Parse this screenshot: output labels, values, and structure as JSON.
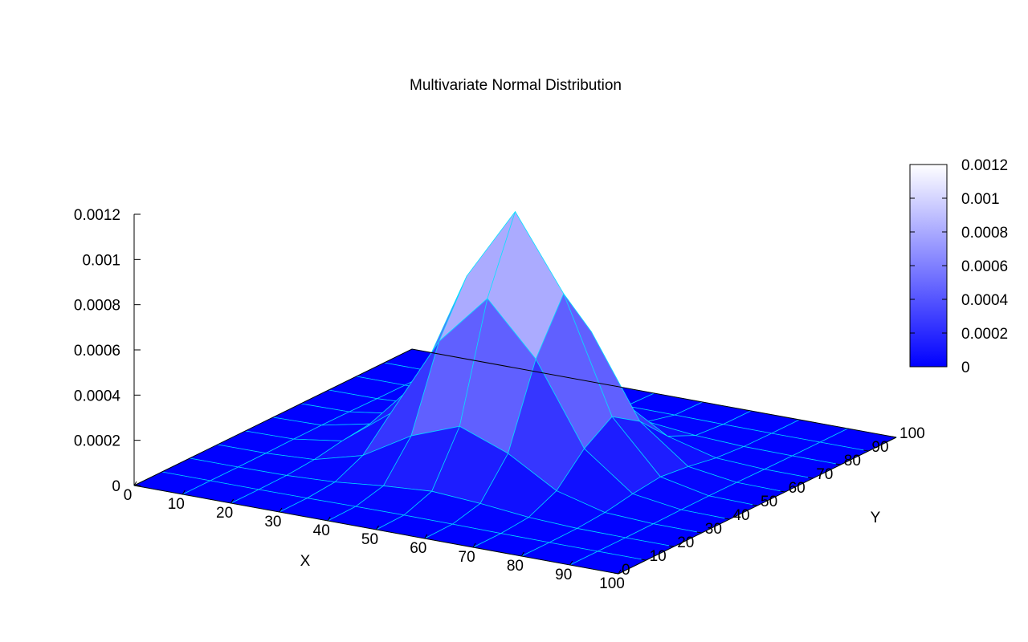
{
  "chart_data": {
    "type": "surface",
    "title": "Multivariate Normal Distribution",
    "xlabel": "X",
    "ylabel": "Y",
    "x": [
      0,
      10,
      20,
      30,
      40,
      50,
      60,
      70,
      80,
      90,
      100
    ],
    "y": [
      0,
      10,
      20,
      30,
      40,
      50,
      60,
      70,
      80,
      90,
      100
    ],
    "z": [
      [
        0,
        0,
        0,
        0,
        0,
        0,
        0,
        0,
        0,
        0,
        0
      ],
      [
        0,
        0,
        0,
        1e-06,
        3e-06,
        4e-06,
        3e-06,
        1e-06,
        0,
        0,
        0
      ],
      [
        0,
        0,
        2e-06,
        1.2e-05,
        3.4e-05,
        4.9e-05,
        3.4e-05,
        1.2e-05,
        2e-06,
        0,
        0
      ],
      [
        0,
        1e-06,
        1.2e-05,
        6.9e-05,
        0.000195,
        0.000276,
        0.000195,
        6.9e-05,
        1.2e-05,
        1e-06,
        0
      ],
      [
        0,
        3e-06,
        3.4e-05,
        0.000195,
        0.000552,
        0.000781,
        0.000552,
        0.000195,
        3.4e-05,
        3e-06,
        0
      ],
      [
        0,
        4e-06,
        4.9e-05,
        0.000276,
        0.000781,
        0.001105,
        0.000781,
        0.000276,
        4.9e-05,
        4e-06,
        0
      ],
      [
        0,
        3e-06,
        3.4e-05,
        0.000195,
        0.000552,
        0.000781,
        0.000552,
        0.000195,
        3.4e-05,
        3e-06,
        0
      ],
      [
        0,
        1e-06,
        1.2e-05,
        6.9e-05,
        0.000195,
        0.000276,
        0.000195,
        6.9e-05,
        1.2e-05,
        1e-06,
        0
      ],
      [
        0,
        0,
        2e-06,
        1.2e-05,
        3.4e-05,
        4.9e-05,
        3.4e-05,
        1.2e-05,
        2e-06,
        0,
        0
      ],
      [
        0,
        0,
        0,
        1e-06,
        3e-06,
        4e-06,
        3e-06,
        1e-06,
        0,
        0,
        0
      ],
      [
        0,
        0,
        0,
        0,
        0,
        0,
        0,
        0,
        0,
        0,
        0
      ]
    ],
    "xlim": [
      0,
      100
    ],
    "ylim": [
      0,
      100
    ],
    "zlim": [
      0,
      0.0012
    ],
    "xticks": [
      0,
      10,
      20,
      30,
      40,
      50,
      60,
      70,
      80,
      90,
      100
    ],
    "yticks": [
      0,
      10,
      20,
      30,
      40,
      50,
      60,
      70,
      80,
      90,
      100
    ],
    "zticks": [
      0,
      0.0002,
      0.0004,
      0.0006,
      0.0008,
      0.001,
      0.0012
    ],
    "cblim": [
      0,
      0.0012
    ],
    "cbticks": [
      0,
      0.0002,
      0.0004,
      0.0006,
      0.0008,
      0.001,
      0.0012
    ],
    "palette": [
      "#0000ff",
      "#ffffff"
    ],
    "mesh_color": "#00e5ff"
  }
}
